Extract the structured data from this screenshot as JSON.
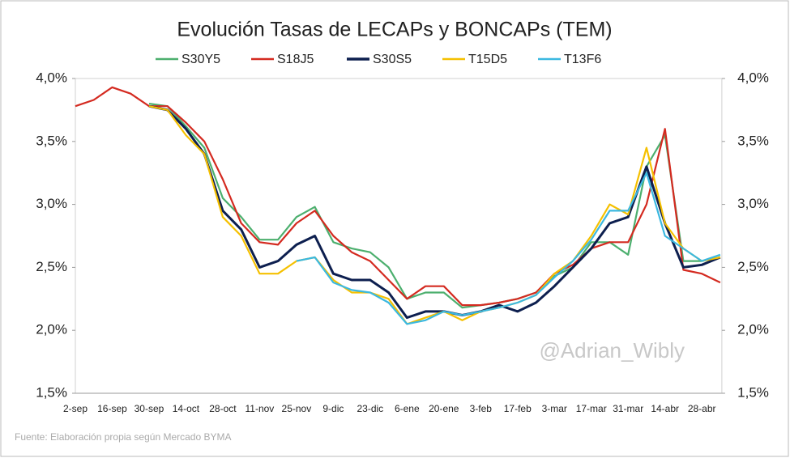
{
  "chart_data": {
    "type": "line",
    "title": "Evolución Tasas de LECAPs y BONCAPs (TEM)",
    "categories": [
      "2-sep",
      null,
      "16-sep",
      null,
      "30-sep",
      null,
      "14-oct",
      null,
      "28-oct",
      null,
      "11-nov",
      null,
      "25-nov",
      null,
      "9-dic",
      null,
      "23-dic",
      null,
      "6-ene",
      null,
      "20-ene",
      null,
      "3-feb",
      null,
      "17-feb",
      null,
      "3-mar",
      null,
      "17-mar",
      null,
      "31-mar",
      null,
      "14-abr",
      null,
      "28-abr",
      null
    ],
    "series": [
      {
        "name": "S30Y5",
        "color": "#4caf6e",
        "values": [
          null,
          null,
          null,
          null,
          3.8,
          3.78,
          3.62,
          3.45,
          3.05,
          2.9,
          2.72,
          2.72,
          2.9,
          2.98,
          2.7,
          2.65,
          2.62,
          2.5,
          2.25,
          2.3,
          2.3,
          2.18,
          2.2,
          2.22,
          2.25,
          2.3,
          2.43,
          2.5,
          2.7,
          2.7,
          2.6,
          3.3,
          3.55,
          2.55,
          2.55,
          2.58
        ]
      },
      {
        "name": "S18J5",
        "color": "#d42a20",
        "values": [
          3.78,
          3.83,
          3.93,
          3.88,
          3.78,
          3.78,
          3.65,
          3.5,
          3.2,
          2.85,
          2.7,
          2.68,
          2.85,
          2.95,
          2.75,
          2.62,
          2.55,
          2.4,
          2.25,
          2.35,
          2.35,
          2.2,
          2.2,
          2.22,
          2.25,
          2.3,
          2.45,
          2.52,
          2.65,
          2.7,
          2.7,
          3.0,
          3.6,
          2.48,
          2.45,
          2.38
        ]
      },
      {
        "name": "S30S5",
        "color": "#0d1f4f",
        "values": [
          null,
          null,
          null,
          null,
          3.78,
          3.75,
          3.6,
          3.4,
          2.95,
          2.8,
          2.5,
          2.55,
          2.68,
          2.75,
          2.45,
          2.4,
          2.4,
          2.3,
          2.1,
          2.15,
          2.15,
          2.12,
          2.15,
          2.2,
          2.15,
          2.22,
          2.35,
          2.5,
          2.65,
          2.85,
          2.9,
          3.3,
          2.85,
          2.5,
          2.52,
          2.58
        ]
      },
      {
        "name": "T15D5",
        "color": "#f5c000",
        "values": [
          null,
          null,
          null,
          null,
          3.78,
          3.75,
          3.55,
          3.4,
          2.9,
          2.75,
          2.45,
          2.45,
          2.55,
          2.58,
          2.4,
          2.3,
          2.3,
          2.25,
          2.05,
          2.1,
          2.15,
          2.08,
          2.15,
          2.18,
          2.22,
          2.28,
          2.45,
          2.55,
          2.75,
          3.0,
          2.92,
          3.45,
          2.85,
          2.65,
          2.55,
          2.58
        ]
      },
      {
        "name": "T13F6",
        "color": "#3bb8e0",
        "values": [
          null,
          null,
          null,
          null,
          null,
          null,
          null,
          null,
          null,
          null,
          null,
          null,
          2.55,
          2.58,
          2.38,
          2.32,
          2.3,
          2.22,
          2.05,
          2.08,
          2.15,
          2.12,
          2.15,
          2.18,
          2.22,
          2.28,
          2.42,
          2.55,
          2.72,
          2.95,
          2.95,
          3.25,
          2.75,
          2.65,
          2.55,
          2.6
        ]
      }
    ],
    "ylim": [
      1.5,
      4.0
    ],
    "yticks": [
      {
        "value": 1.5,
        "label": "1,5%"
      },
      {
        "value": 2.0,
        "label": "2,0%"
      },
      {
        "value": 2.5,
        "label": "2,5%"
      },
      {
        "value": 3.0,
        "label": "3,0%"
      },
      {
        "value": 3.5,
        "label": "3,5%"
      },
      {
        "value": 4.0,
        "label": "4,0%"
      }
    ],
    "y2lim": [
      1.5,
      4.0
    ],
    "y2ticks": [
      {
        "value": 1.5,
        "label": "1,5%"
      },
      {
        "value": 2.0,
        "label": "2,0%"
      },
      {
        "value": 2.5,
        "label": "2,5%"
      },
      {
        "value": 3.0,
        "label": "3,0%"
      },
      {
        "value": 3.5,
        "label": "3,5%"
      },
      {
        "value": 4.0,
        "label": "4,0%"
      }
    ],
    "watermark": "@Adrian_Wibly",
    "source": "Fuente: Elaboración propia según Mercado BYMA",
    "legend": "top"
  }
}
